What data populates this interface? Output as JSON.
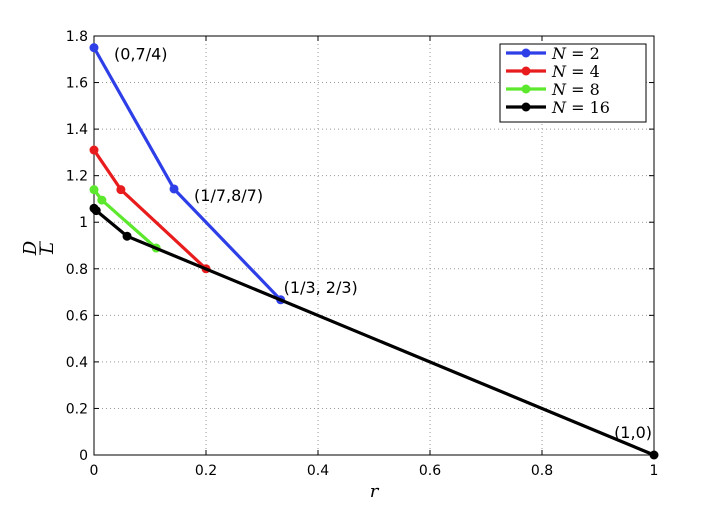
{
  "chart_data": {
    "type": "line",
    "xlabel": "r",
    "ylabel_num": "D",
    "ylabel_den": "L",
    "xlim": [
      0,
      1
    ],
    "ylim": [
      0,
      1.8
    ],
    "grid": true,
    "grid_style": "dotted",
    "legend_position": "top-right",
    "xticks": [
      0,
      0.2,
      0.4,
      0.6,
      0.8,
      1
    ],
    "xtick_labels": [
      "0",
      "0.2",
      "0.4",
      "0.6",
      "0.8",
      "1"
    ],
    "yticks": [
      0,
      0.2,
      0.4,
      0.6,
      0.8,
      1,
      1.2,
      1.4,
      1.6,
      1.8
    ],
    "ytick_labels": [
      "0",
      "0.2",
      "0.4",
      "0.6",
      "0.8",
      "1",
      "1.2",
      "1.4",
      "1.6",
      "1.8"
    ],
    "series": [
      {
        "name": "N = 2",
        "legend_var": "N",
        "legend_value": "2",
        "color": "#2e3fe8",
        "x": [
          0,
          0.1429,
          0.3333
        ],
        "y": [
          1.75,
          1.1429,
          0.6667
        ]
      },
      {
        "name": "N = 4",
        "legend_var": "N",
        "legend_value": "4",
        "color": "#e81c1c",
        "x": [
          0,
          0.048,
          0.2
        ],
        "y": [
          1.31,
          1.14,
          0.8
        ]
      },
      {
        "name": "N = 8",
        "legend_var": "N",
        "legend_value": "8",
        "color": "#5ce82c",
        "x": [
          0,
          0.014,
          0.111
        ],
        "y": [
          1.14,
          1.095,
          0.889
        ]
      },
      {
        "name": "N = 16",
        "legend_var": "N",
        "legend_value": "16",
        "color": "#000000",
        "x": [
          0,
          0.004,
          0.059,
          1
        ],
        "y": [
          1.06,
          1.05,
          0.94,
          0
        ]
      }
    ],
    "annotations": [
      {
        "text": "(0,7/4)",
        "x": 0,
        "y": 1.75,
        "anchor": "right"
      },
      {
        "text": "(1/7,8/7)",
        "x": 0.1429,
        "y": 1.1429,
        "anchor": "right"
      },
      {
        "text": "(1/3, 2/3)",
        "x": 0.3333,
        "y": 0.6667,
        "anchor": "upper-right"
      },
      {
        "text": "(1,0)",
        "x": 1,
        "y": 0,
        "anchor": "above-left"
      }
    ]
  }
}
